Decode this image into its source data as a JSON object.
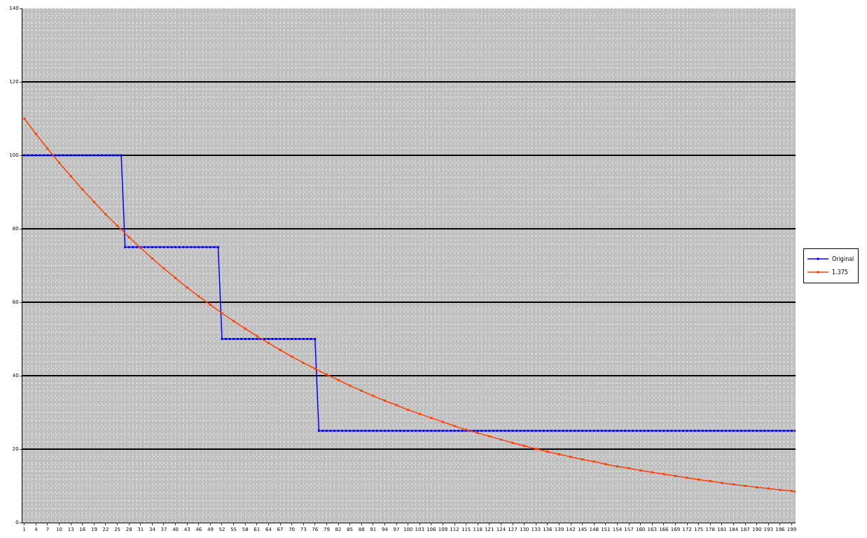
{
  "chart_data": {
    "type": "line",
    "xlim": [
      0.5,
      200
    ],
    "xticks": [
      1,
      4,
      7,
      10,
      13,
      16,
      19,
      22,
      25,
      28,
      31,
      34,
      37,
      40,
      43,
      46,
      49,
      52,
      55,
      58,
      61,
      64,
      67,
      70,
      73,
      76,
      79,
      82,
      85,
      88,
      91,
      94,
      97,
      100,
      103,
      106,
      109,
      112,
      115,
      118,
      121,
      124,
      127,
      130,
      133,
      136,
      139,
      142,
      145,
      148,
      151,
      154,
      157,
      160,
      163,
      166,
      169,
      172,
      175,
      178,
      181,
      184,
      187,
      190,
      193,
      196,
      199
    ],
    "ylim": [
      0,
      140
    ],
    "yticks": [
      0,
      20,
      40,
      60,
      80,
      100,
      120,
      140
    ],
    "grid": true,
    "legend": "right",
    "marker": "square",
    "line_style": "solid",
    "series": [
      {
        "name": "Original",
        "color": "#0000ff",
        "x": [
          1,
          2,
          3,
          4,
          5,
          6,
          7,
          8,
          9,
          10,
          11,
          12,
          13,
          14,
          15,
          16,
          17,
          18,
          19,
          20,
          21,
          22,
          23,
          24,
          25,
          26,
          27,
          28,
          29,
          30,
          31,
          32,
          33,
          34,
          35,
          36,
          37,
          38,
          39,
          40,
          41,
          42,
          43,
          44,
          45,
          46,
          47,
          48,
          49,
          50,
          51,
          52,
          53,
          54,
          55,
          56,
          57,
          58,
          59,
          60,
          61,
          62,
          63,
          64,
          65,
          66,
          67,
          68,
          69,
          70,
          71,
          72,
          73,
          74,
          75,
          76,
          77,
          78,
          79,
          80,
          81,
          82,
          83,
          84,
          85,
          86,
          87,
          88,
          89,
          90,
          91,
          92,
          93,
          94,
          95,
          96,
          97,
          98,
          99,
          100,
          101,
          102,
          103,
          104,
          105,
          106,
          107,
          108,
          109,
          110,
          111,
          112,
          113,
          114,
          115,
          116,
          117,
          118,
          119,
          120,
          121,
          122,
          123,
          124,
          125,
          126,
          127,
          128,
          129,
          130,
          131,
          132,
          133,
          134,
          135,
          136,
          137,
          138,
          139,
          140,
          141,
          142,
          143,
          144,
          145,
          146,
          147,
          148,
          149,
          150,
          151,
          152,
          153,
          154,
          155,
          156,
          157,
          158,
          159,
          160,
          161,
          162,
          163,
          164,
          165,
          166,
          167,
          168,
          169,
          170,
          171,
          172,
          173,
          174,
          175,
          176,
          177,
          178,
          179,
          180,
          181,
          182,
          183,
          184,
          185,
          186,
          187,
          188,
          189,
          190,
          191,
          192,
          193,
          194,
          195,
          196,
          197,
          198,
          199,
          200
        ],
        "values": [
          100,
          100,
          100,
          100,
          100,
          100,
          100,
          100,
          100,
          100,
          100,
          100,
          100,
          100,
          100,
          100,
          100,
          100,
          100,
          100,
          100,
          100,
          100,
          100,
          100,
          100,
          75,
          75,
          75,
          75,
          75,
          75,
          75,
          75,
          75,
          75,
          75,
          75,
          75,
          75,
          75,
          75,
          75,
          75,
          75,
          75,
          75,
          75,
          75,
          75,
          75,
          50,
          50,
          50,
          50,
          50,
          50,
          50,
          50,
          50,
          50,
          50,
          50,
          50,
          50,
          50,
          50,
          50,
          50,
          50,
          50,
          50,
          50,
          50,
          50,
          50,
          25,
          25,
          25,
          25,
          25,
          25,
          25,
          25,
          25,
          25,
          25,
          25,
          25,
          25,
          25,
          25,
          25,
          25,
          25,
          25,
          25,
          25,
          25,
          25,
          25,
          25,
          25,
          25,
          25,
          25,
          25,
          25,
          25,
          25,
          25,
          25,
          25,
          25,
          25,
          25,
          25,
          25,
          25,
          25,
          25,
          25,
          25,
          25,
          25,
          25,
          25,
          25,
          25,
          25,
          25,
          25,
          25,
          25,
          25,
          25,
          25,
          25,
          25,
          25,
          25,
          25,
          25,
          25,
          25,
          25,
          25,
          25,
          25,
          25,
          25,
          25,
          25,
          25,
          25,
          25,
          25,
          25,
          25,
          25,
          25,
          25,
          25,
          25,
          25,
          25,
          25,
          25,
          25,
          25,
          25,
          25,
          25,
          25,
          25,
          25,
          25,
          25,
          25,
          25,
          25,
          25,
          25,
          25,
          25,
          25,
          25,
          25,
          25,
          25,
          25,
          25,
          25,
          25,
          25,
          25,
          25,
          25,
          25,
          25
        ]
      },
      {
        "name": "1.375",
        "color": "#ff4000",
        "x": [
          1,
          4,
          7,
          10,
          13,
          16,
          19,
          22,
          25,
          28,
          31,
          34,
          37,
          40,
          43,
          46,
          49,
          52,
          55,
          58,
          61,
          64,
          67,
          70,
          73,
          76,
          79,
          82,
          85,
          88,
          91,
          94,
          97,
          100,
          103,
          106,
          109,
          112,
          115,
          118,
          121,
          124,
          127,
          130,
          133,
          136,
          139,
          142,
          145,
          148,
          151,
          154,
          157,
          160,
          163,
          166,
          169,
          172,
          175,
          178,
          181,
          184,
          187,
          190,
          193,
          196,
          199,
          200
        ],
        "values": [
          110,
          105.8,
          101.8,
          98,
          94.3,
          90.7,
          87.3,
          83.9,
          80.8,
          77.7,
          74.8,
          71.9,
          69.2,
          66.6,
          64,
          61.6,
          59.3,
          57,
          54.9,
          52.8,
          50.8,
          48.9,
          47,
          45.2,
          43.5,
          41.9,
          40.3,
          38.8,
          37.3,
          35.9,
          34.5,
          33.2,
          32,
          30.7,
          29.6,
          28.5,
          27.4,
          26.3,
          25.3,
          24.4,
          23.5,
          22.6,
          21.7,
          20.9,
          20.1,
          19.3,
          18.6,
          17.9,
          17.2,
          16.6,
          15.9,
          15.3,
          14.8,
          14.2,
          13.7,
          13.2,
          12.7,
          12.2,
          11.7,
          11.3,
          10.8,
          10.4,
          10,
          9.6,
          9.3,
          8.9,
          8.6,
          8.5
        ]
      }
    ]
  }
}
